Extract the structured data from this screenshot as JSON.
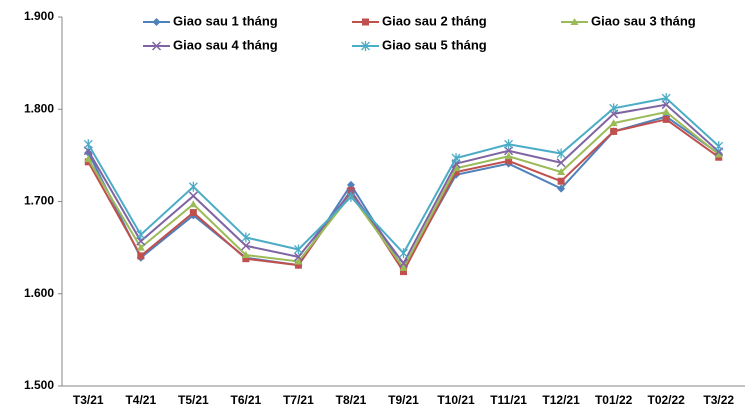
{
  "chart_data": {
    "type": "line",
    "categories": [
      "T3/21",
      "T4/21",
      "T5/21",
      "T6/21",
      "T7/21",
      "T8/21",
      "T9/21",
      "T10/21",
      "T11/21",
      "T12/21",
      "T01/22",
      "T02/22",
      "T3/22"
    ],
    "series": [
      {
        "name": "Giao sau 1 tháng",
        "color": "#4f81bd",
        "marker": "diamond",
        "values": [
          1753,
          1639,
          1685,
          1639,
          1631,
          1718,
          1627,
          1729,
          1741,
          1714,
          1776,
          1792,
          1752
        ]
      },
      {
        "name": "Giao sau 2 tháng",
        "color": "#c0504d",
        "marker": "square",
        "values": [
          1743,
          1641,
          1688,
          1638,
          1631,
          1712,
          1624,
          1732,
          1744,
          1722,
          1776,
          1789,
          1748
        ]
      },
      {
        "name": "Giao sau 3 tháng",
        "color": "#9bbb59",
        "marker": "triangle",
        "values": [
          1746,
          1650,
          1697,
          1642,
          1635,
          1707,
          1628,
          1736,
          1749,
          1732,
          1785,
          1797,
          1751
        ]
      },
      {
        "name": "Giao sau 4 tháng",
        "color": "#8064a2",
        "marker": "x",
        "values": [
          1755,
          1657,
          1706,
          1652,
          1640,
          1710,
          1633,
          1741,
          1755,
          1742,
          1795,
          1805,
          1754
        ]
      },
      {
        "name": "Giao sau 5 tháng",
        "color": "#4bacc6",
        "marker": "star",
        "values": [
          1762,
          1664,
          1716,
          1661,
          1648,
          1705,
          1644,
          1747,
          1762,
          1752,
          1801,
          1812,
          1760
        ]
      }
    ],
    "ylim": [
      1500,
      1900
    ],
    "yticks": [
      {
        "value": 1500,
        "label": "1.500"
      },
      {
        "value": 1600,
        "label": "1.600"
      },
      {
        "value": 1700,
        "label": "1.700"
      },
      {
        "value": 1800,
        "label": "1.800"
      },
      {
        "value": 1900,
        "label": "1.900"
      }
    ],
    "grid": false,
    "legend": "top"
  }
}
